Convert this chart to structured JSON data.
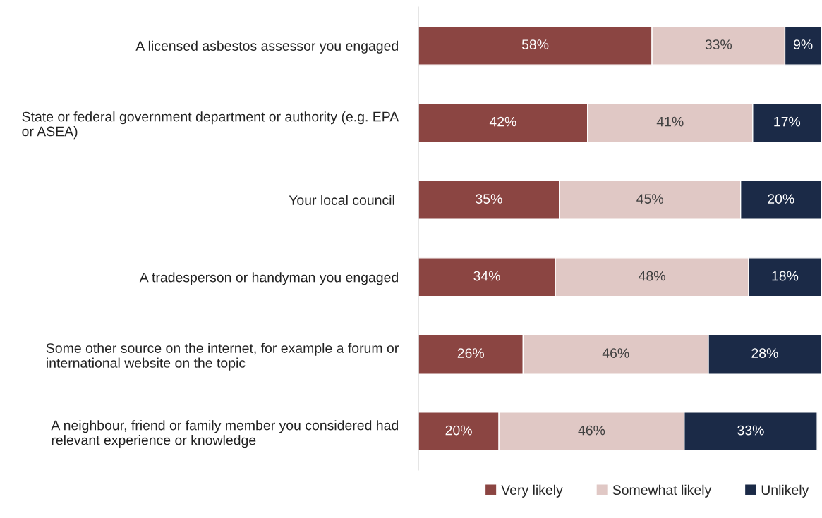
{
  "chart_data": {
    "type": "bar",
    "orientation": "horizontal",
    "stacked": true,
    "categories": [
      "A licensed asbestos assessor you engaged",
      "State or federal government department or authority (e.g. EPA\nor ASEA)",
      "Your local council ",
      "A tradesperson or handyman you engaged",
      "Some other source on the internet, for example a forum or\ninternational website on the topic",
      "A neighbour, friend or family member you considered had\nrelevant experience or knowledge"
    ],
    "series": [
      {
        "name": "Very likely",
        "color": "#8b4542",
        "values": [
          58,
          42,
          35,
          34,
          26,
          20
        ],
        "value_labels": [
          "58%",
          "42%",
          "35%",
          "34%",
          "26%",
          "20%"
        ]
      },
      {
        "name": "Somewhat likely",
        "color": "#e0c8c5",
        "values": [
          33,
          41,
          45,
          48,
          46,
          46
        ],
        "value_labels": [
          "33%",
          "41%",
          "45%",
          "48%",
          "46%",
          "46%"
        ]
      },
      {
        "name": "Unlikely",
        "color": "#1b2a47",
        "values": [
          9,
          17,
          20,
          18,
          28,
          33
        ],
        "value_labels": [
          "9%",
          "17%",
          "20%",
          "18%",
          "28%",
          "33%"
        ]
      }
    ],
    "xlim": [
      0,
      100
    ],
    "tick_labels": "y",
    "legend": "bottom",
    "grid": false
  }
}
